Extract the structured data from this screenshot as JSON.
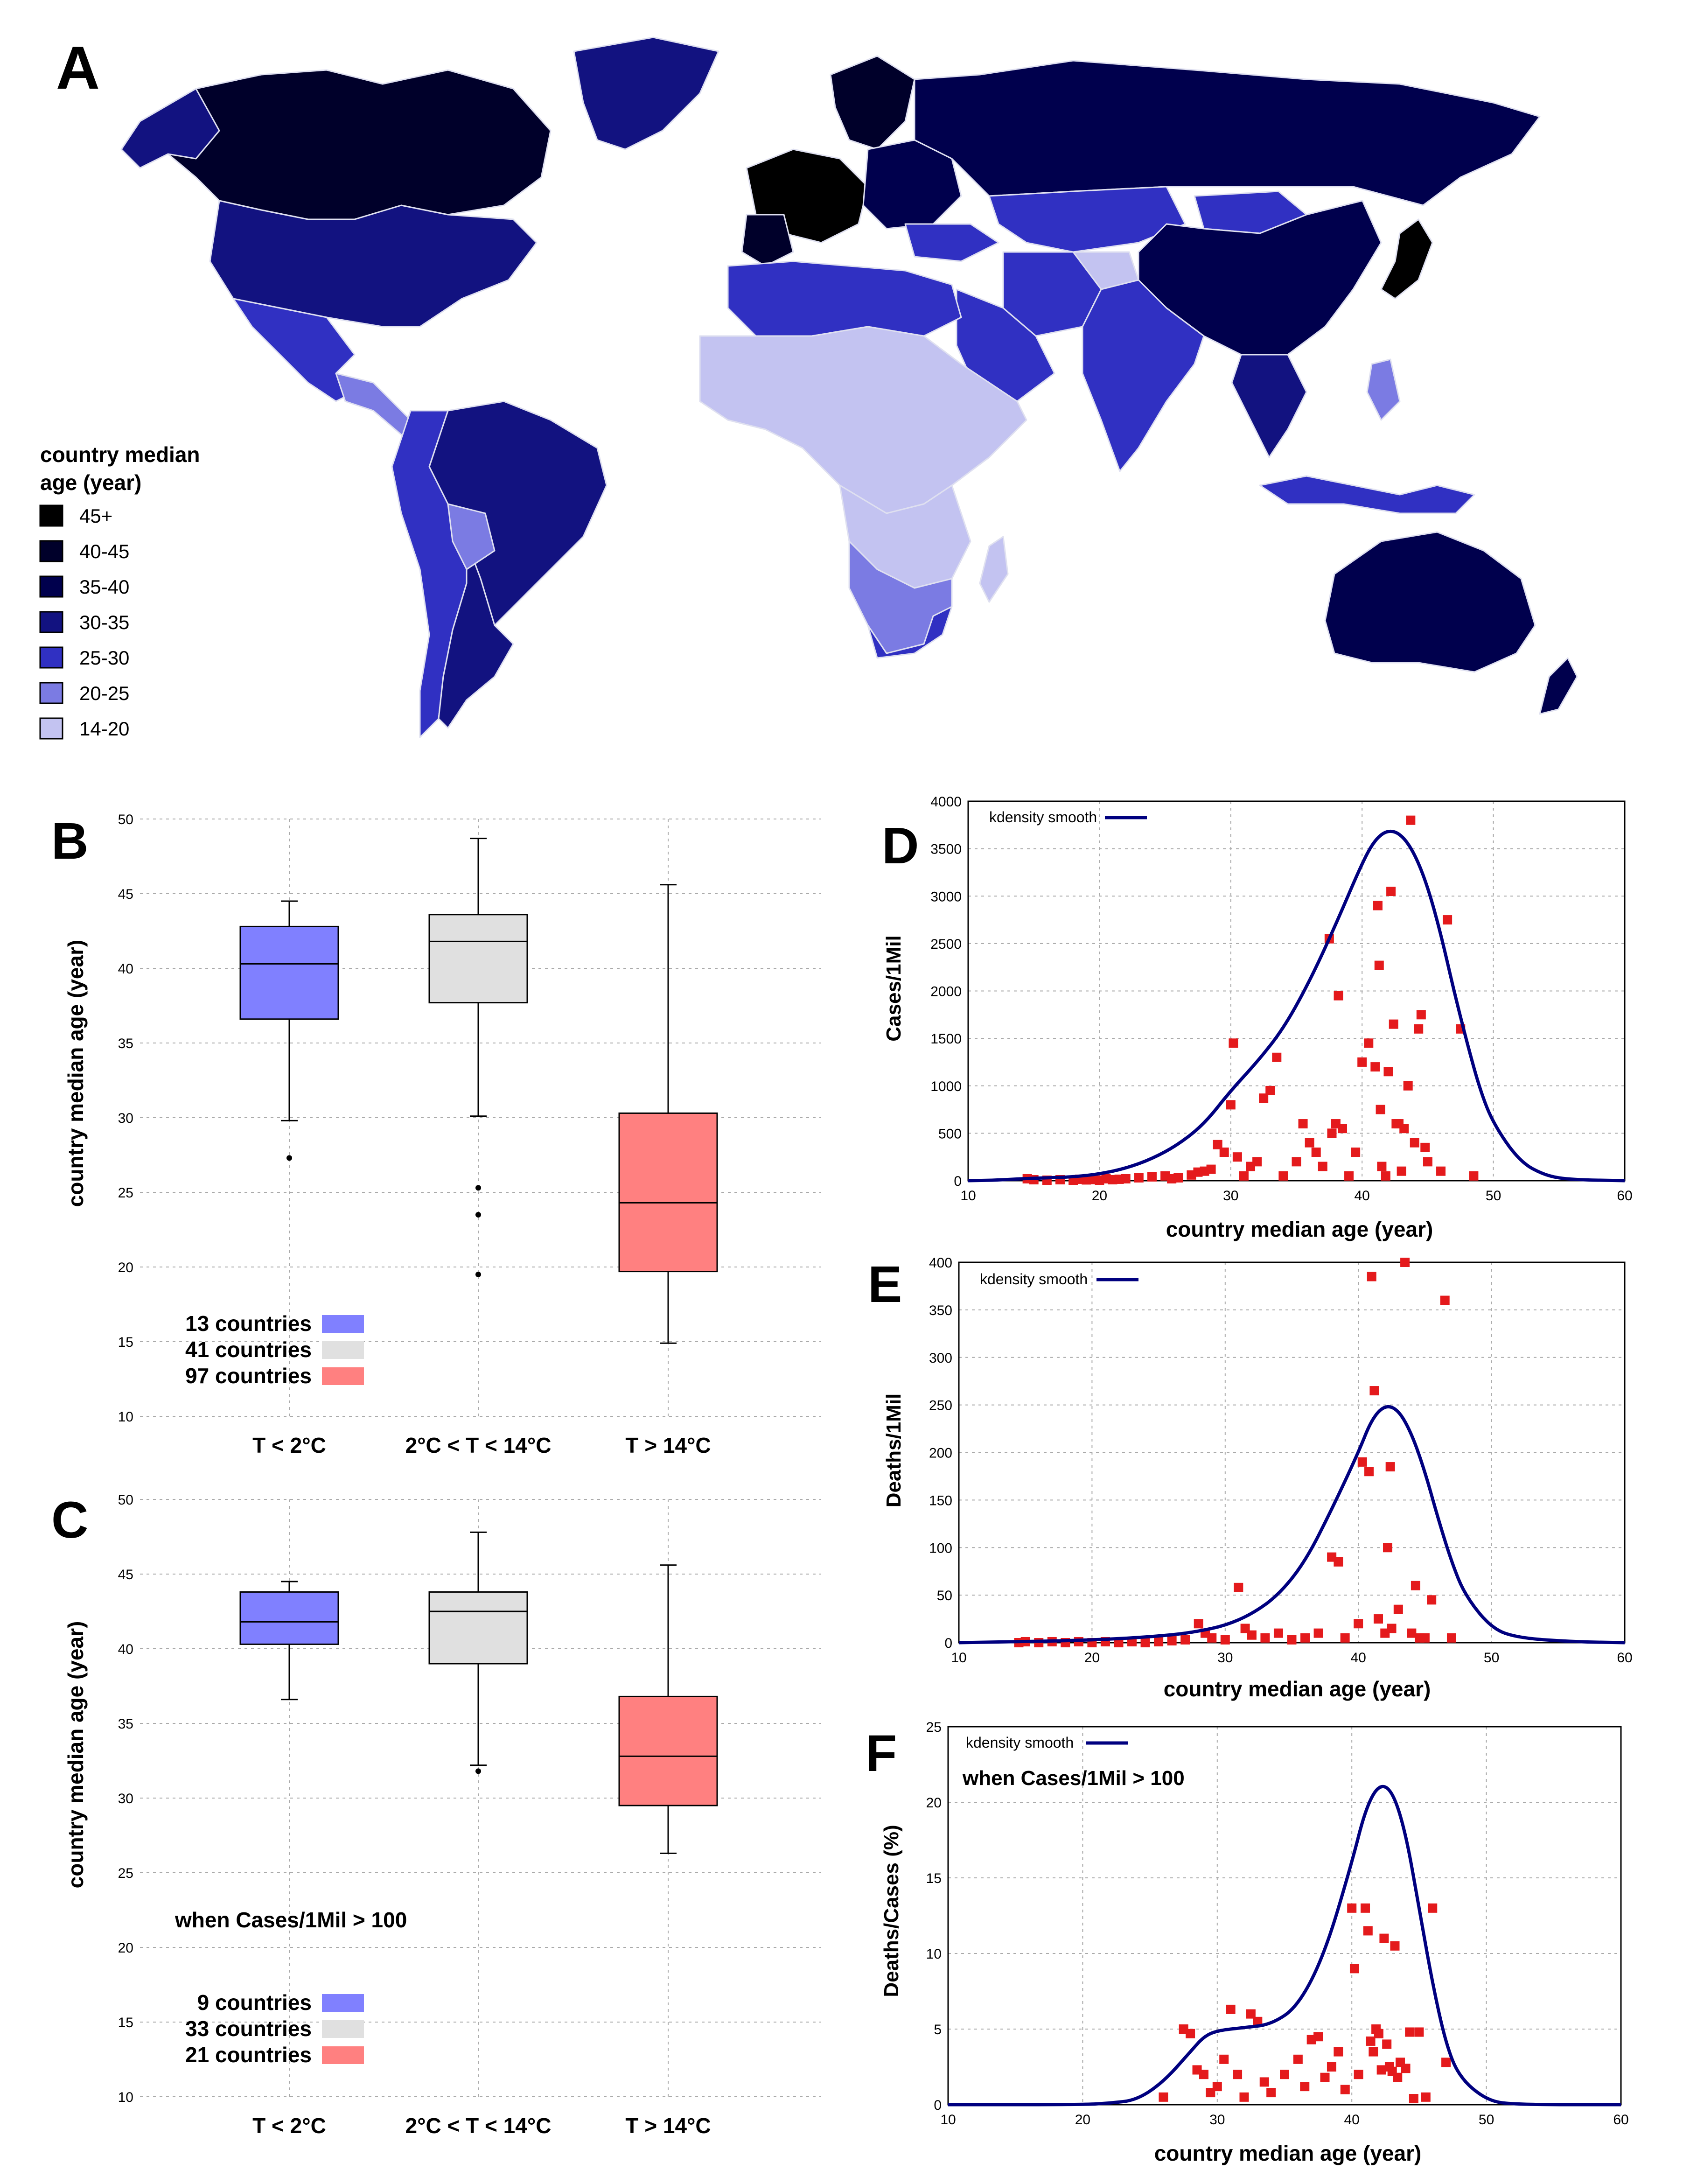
{
  "colors": {
    "map_bins": [
      "#000000",
      "#00002a",
      "#00004d",
      "#121280",
      "#3030c2",
      "#7b7be3",
      "#c3c3f1"
    ],
    "box": [
      "#8080ff",
      "#e0e0e0",
      "#ff8080"
    ],
    "curve": "#00007f",
    "points": "#e41a1c",
    "grid": "#aaaaaa"
  },
  "panels": {
    "A": {
      "label": "A",
      "legend_title_1": "country median",
      "legend_title_2": "age (year)",
      "bins": [
        "45+",
        "40-45",
        "35-40",
        "30-35",
        "25-30",
        "20-25",
        "14-20"
      ]
    },
    "B": {
      "label": "B",
      "ylabel": "country  median age (year)",
      "categories": [
        "T < 2°C",
        "2°C < T < 14°C",
        "T > 14°C"
      ],
      "legend": [
        "13 countries",
        "41 countries",
        "97 countries"
      ]
    },
    "C": {
      "label": "C",
      "ylabel": "country  median age (year)",
      "categories": [
        "T < 2°C",
        "2°C < T < 14°C",
        "T > 14°C"
      ],
      "note": "when Cases/1Mil > 100",
      "legend": [
        "9 countries",
        "33 countries",
        "21 countries"
      ]
    },
    "D": {
      "label": "D",
      "ylabel": "Cases/1Mil",
      "xlabel": "country  median age (year)",
      "legend": "kdensity smooth"
    },
    "E": {
      "label": "E",
      "ylabel": "Deaths/1Mil",
      "xlabel": "country  median age (year)",
      "legend": "kdensity smooth"
    },
    "F": {
      "label": "F",
      "ylabel": "Deaths/Cases (%)",
      "xlabel": "country  median age (year)",
      "legend": "kdensity smooth",
      "note": "when Cases/1Mil > 100"
    }
  },
  "chart_data": [
    {
      "id": "B",
      "type": "box",
      "title": "",
      "xlabel": "",
      "ylabel": "country  median age (year)",
      "ylim": [
        10,
        50
      ],
      "yticks": [
        10,
        15,
        20,
        25,
        30,
        35,
        40,
        45,
        50
      ],
      "categories": [
        "T < 2°C",
        "2°C < T < 14°C",
        "T > 14°C"
      ],
      "boxes": [
        {
          "min": 29.8,
          "q1": 36.6,
          "median": 40.3,
          "q3": 42.8,
          "max": 44.5,
          "outliers": [
            27.3
          ]
        },
        {
          "min": 30.1,
          "q1": 37.7,
          "median": 41.8,
          "q3": 43.6,
          "max": 48.7,
          "outliers": [
            25.3,
            23.5,
            19.5
          ]
        },
        {
          "min": 14.9,
          "q1": 19.7,
          "median": 24.3,
          "q3": 30.3,
          "max": 45.6,
          "outliers": []
        }
      ]
    },
    {
      "id": "C",
      "type": "box",
      "title": "",
      "xlabel": "",
      "ylabel": "country  median age (year)",
      "ylim": [
        10,
        50
      ],
      "yticks": [
        10,
        15,
        20,
        25,
        30,
        35,
        40,
        45,
        50
      ],
      "categories": [
        "T < 2°C",
        "2°C < T < 14°C",
        "T > 14°C"
      ],
      "boxes": [
        {
          "min": 36.6,
          "q1": 40.3,
          "median": 41.8,
          "q3": 43.8,
          "max": 44.5,
          "outliers": []
        },
        {
          "min": 32.2,
          "q1": 39.0,
          "median": 42.5,
          "q3": 43.8,
          "max": 47.8,
          "outliers": [
            31.8
          ]
        },
        {
          "min": 26.3,
          "q1": 29.5,
          "median": 32.8,
          "q3": 36.8,
          "max": 45.6,
          "outliers": []
        }
      ]
    },
    {
      "id": "D",
      "type": "scatter",
      "xlabel": "country  median age (year)",
      "ylabel": "Cases/1Mil",
      "xlim": [
        10,
        60
      ],
      "ylim": [
        0,
        4000
      ],
      "xticks": [
        10,
        20,
        30,
        40,
        50,
        60
      ],
      "yticks": [
        0,
        500,
        1000,
        1500,
        2000,
        2500,
        3000,
        3500,
        4000
      ],
      "curve_name": "kdensity smooth",
      "curve": [
        [
          10,
          0
        ],
        [
          12,
          5
        ],
        [
          14,
          20
        ],
        [
          16,
          30
        ],
        [
          18,
          40
        ],
        [
          20,
          70
        ],
        [
          22,
          130
        ],
        [
          24,
          230
        ],
        [
          26,
          380
        ],
        [
          28,
          600
        ],
        [
          30,
          950
        ],
        [
          32,
          1250
        ],
        [
          34,
          1600
        ],
        [
          36,
          2100
        ],
        [
          38,
          2700
        ],
        [
          40,
          3350
        ],
        [
          41,
          3600
        ],
        [
          42,
          3700
        ],
        [
          43,
          3650
        ],
        [
          44,
          3450
        ],
        [
          45,
          3100
        ],
        [
          46,
          2600
        ],
        [
          47,
          2000
        ],
        [
          48,
          1450
        ],
        [
          49,
          950
        ],
        [
          50,
          600
        ],
        [
          52,
          200
        ],
        [
          54,
          50
        ],
        [
          56,
          10
        ],
        [
          60,
          0
        ]
      ],
      "points": [
        [
          14.5,
          20
        ],
        [
          15,
          10
        ],
        [
          16,
          5
        ],
        [
          17,
          10
        ],
        [
          18,
          5
        ],
        [
          18.5,
          15
        ],
        [
          19,
          8
        ],
        [
          19.5,
          12
        ],
        [
          20,
          5
        ],
        [
          20.5,
          20
        ],
        [
          21,
          10
        ],
        [
          21.5,
          15
        ],
        [
          22,
          20
        ],
        [
          23,
          30
        ],
        [
          24,
          40
        ],
        [
          25,
          50
        ],
        [
          25.5,
          20
        ],
        [
          26,
          30
        ],
        [
          27,
          60
        ],
        [
          27.5,
          90
        ],
        [
          28,
          100
        ],
        [
          28.5,
          120
        ],
        [
          29,
          380
        ],
        [
          29.5,
          300
        ],
        [
          30,
          800
        ],
        [
          30.2,
          1450
        ],
        [
          30.5,
          250
        ],
        [
          31,
          50
        ],
        [
          31.5,
          150
        ],
        [
          32,
          200
        ],
        [
          32.5,
          870
        ],
        [
          33,
          950
        ],
        [
          33.5,
          1300
        ],
        [
          34,
          50
        ],
        [
          35,
          200
        ],
        [
          35.5,
          600
        ],
        [
          36,
          400
        ],
        [
          36.5,
          300
        ],
        [
          37,
          150
        ],
        [
          37.5,
          2550
        ],
        [
          37.7,
          500
        ],
        [
          38,
          600
        ],
        [
          38.2,
          1950
        ],
        [
          38.5,
          550
        ],
        [
          39,
          50
        ],
        [
          39.5,
          300
        ],
        [
          40,
          1250
        ],
        [
          40.5,
          1450
        ],
        [
          41,
          1200
        ],
        [
          41.2,
          2900
        ],
        [
          41.3,
          2270
        ],
        [
          41.4,
          750
        ],
        [
          41.5,
          150
        ],
        [
          41.8,
          50
        ],
        [
          42,
          1150
        ],
        [
          42.2,
          3050
        ],
        [
          42.4,
          1650
        ],
        [
          42.6,
          600
        ],
        [
          42.8,
          600
        ],
        [
          43,
          100
        ],
        [
          43.2,
          550
        ],
        [
          43.5,
          1000
        ],
        [
          43.7,
          3800
        ],
        [
          44,
          400
        ],
        [
          44.3,
          1600
        ],
        [
          44.5,
          1750
        ],
        [
          44.8,
          350
        ],
        [
          45,
          200
        ],
        [
          46,
          100
        ],
        [
          46.5,
          2750
        ],
        [
          47.5,
          1600
        ],
        [
          48.5,
          50
        ]
      ]
    },
    {
      "id": "E",
      "type": "scatter",
      "xlabel": "country  median age (year)",
      "ylabel": "Deaths/1Mil",
      "xlim": [
        10,
        60
      ],
      "ylim": [
        0,
        400
      ],
      "xticks": [
        10,
        20,
        30,
        40,
        50,
        60
      ],
      "yticks": [
        0,
        50,
        100,
        150,
        200,
        250,
        300,
        350,
        400
      ],
      "curve_name": "kdensity smooth",
      "curve": [
        [
          10,
          0
        ],
        [
          14,
          1
        ],
        [
          18,
          2
        ],
        [
          22,
          4
        ],
        [
          26,
          8
        ],
        [
          28,
          12
        ],
        [
          30,
          18
        ],
        [
          32,
          30
        ],
        [
          34,
          50
        ],
        [
          36,
          85
        ],
        [
          38,
          140
        ],
        [
          40,
          200
        ],
        [
          41,
          235
        ],
        [
          42,
          250
        ],
        [
          43,
          245
        ],
        [
          44,
          220
        ],
        [
          45,
          180
        ],
        [
          46,
          130
        ],
        [
          47,
          85
        ],
        [
          48,
          50
        ],
        [
          50,
          15
        ],
        [
          52,
          5
        ],
        [
          56,
          1
        ],
        [
          60,
          0
        ]
      ],
      "points": [
        [
          14.5,
          0
        ],
        [
          15,
          1
        ],
        [
          16,
          0
        ],
        [
          17,
          1
        ],
        [
          18,
          0
        ],
        [
          19,
          1
        ],
        [
          20,
          0
        ],
        [
          21,
          1
        ],
        [
          22,
          0
        ],
        [
          23,
          1
        ],
        [
          24,
          0
        ],
        [
          25,
          1
        ],
        [
          26,
          2
        ],
        [
          27,
          3
        ],
        [
          28,
          20
        ],
        [
          28.5,
          10
        ],
        [
          29,
          5
        ],
        [
          30,
          3
        ],
        [
          31,
          58
        ],
        [
          31.5,
          15
        ],
        [
          32,
          8
        ],
        [
          33,
          5
        ],
        [
          34,
          10
        ],
        [
          35,
          3
        ],
        [
          36,
          5
        ],
        [
          37,
          10
        ],
        [
          38,
          90
        ],
        [
          38.5,
          85
        ],
        [
          39,
          5
        ],
        [
          40,
          20
        ],
        [
          40.3,
          190
        ],
        [
          40.8,
          180
        ],
        [
          41,
          385
        ],
        [
          41.2,
          265
        ],
        [
          41.5,
          25
        ],
        [
          42,
          10
        ],
        [
          42.2,
          100
        ],
        [
          42.4,
          185
        ],
        [
          42.5,
          15
        ],
        [
          43,
          35
        ],
        [
          43.5,
          400
        ],
        [
          44,
          10
        ],
        [
          44.3,
          60
        ],
        [
          44.6,
          5
        ],
        [
          45,
          5
        ],
        [
          45.5,
          45
        ],
        [
          46.5,
          360
        ],
        [
          47,
          5
        ]
      ]
    },
    {
      "id": "F",
      "type": "scatter",
      "xlabel": "country  median age (year)",
      "ylabel": "Deaths/Cases (%)",
      "xlim": [
        10,
        60
      ],
      "ylim": [
        0,
        25
      ],
      "xticks": [
        10,
        20,
        30,
        40,
        50,
        60
      ],
      "yticks": [
        0,
        5,
        10,
        15,
        20,
        25
      ],
      "note": "when Cases/1Mil > 100",
      "curve_name": "kdensity smooth",
      "curve": [
        [
          10,
          0
        ],
        [
          20,
          0
        ],
        [
          22,
          0.1
        ],
        [
          24,
          0.3
        ],
        [
          26,
          1.5
        ],
        [
          28,
          3.5
        ],
        [
          29,
          4.5
        ],
        [
          30,
          4.9
        ],
        [
          32,
          5.1
        ],
        [
          34,
          5.3
        ],
        [
          36,
          6.5
        ],
        [
          38,
          10
        ],
        [
          40,
          16
        ],
        [
          41,
          19.5
        ],
        [
          42,
          21.2
        ],
        [
          43,
          20.8
        ],
        [
          44,
          18
        ],
        [
          45,
          13
        ],
        [
          46,
          8
        ],
        [
          47,
          4
        ],
        [
          48,
          1.8
        ],
        [
          50,
          0.3
        ],
        [
          52,
          0
        ],
        [
          60,
          0
        ]
      ],
      "points": [
        [
          26,
          0.5
        ],
        [
          27.5,
          5
        ],
        [
          28,
          4.7
        ],
        [
          28.5,
          2.3
        ],
        [
          29,
          2
        ],
        [
          29.5,
          0.8
        ],
        [
          30,
          1.2
        ],
        [
          30.5,
          3
        ],
        [
          31,
          6.3
        ],
        [
          31.5,
          2
        ],
        [
          32,
          0.5
        ],
        [
          32.5,
          6
        ],
        [
          33,
          5.5
        ],
        [
          33.5,
          1.5
        ],
        [
          34,
          0.8
        ],
        [
          35,
          2
        ],
        [
          36,
          3
        ],
        [
          36.5,
          1.2
        ],
        [
          37,
          4.3
        ],
        [
          37.5,
          4.5
        ],
        [
          38,
          1.8
        ],
        [
          38.5,
          2.5
        ],
        [
          39,
          3.5
        ],
        [
          39.5,
          1
        ],
        [
          40,
          13
        ],
        [
          40.2,
          9
        ],
        [
          40.5,
          2
        ],
        [
          41,
          13
        ],
        [
          41.2,
          11.5
        ],
        [
          41.4,
          4.2
        ],
        [
          41.6,
          3.5
        ],
        [
          41.8,
          5
        ],
        [
          42,
          4.7
        ],
        [
          42.2,
          2.3
        ],
        [
          42.4,
          11
        ],
        [
          42.6,
          4
        ],
        [
          42.8,
          2.5
        ],
        [
          43,
          2.2
        ],
        [
          43.2,
          10.5
        ],
        [
          43.4,
          1.8
        ],
        [
          43.6,
          2.8
        ],
        [
          44,
          2.4
        ],
        [
          44.3,
          4.8
        ],
        [
          44.6,
          0.4
        ],
        [
          45,
          4.8
        ],
        [
          45.5,
          0.5
        ],
        [
          46,
          13
        ],
        [
          47,
          2.8
        ]
      ]
    }
  ]
}
